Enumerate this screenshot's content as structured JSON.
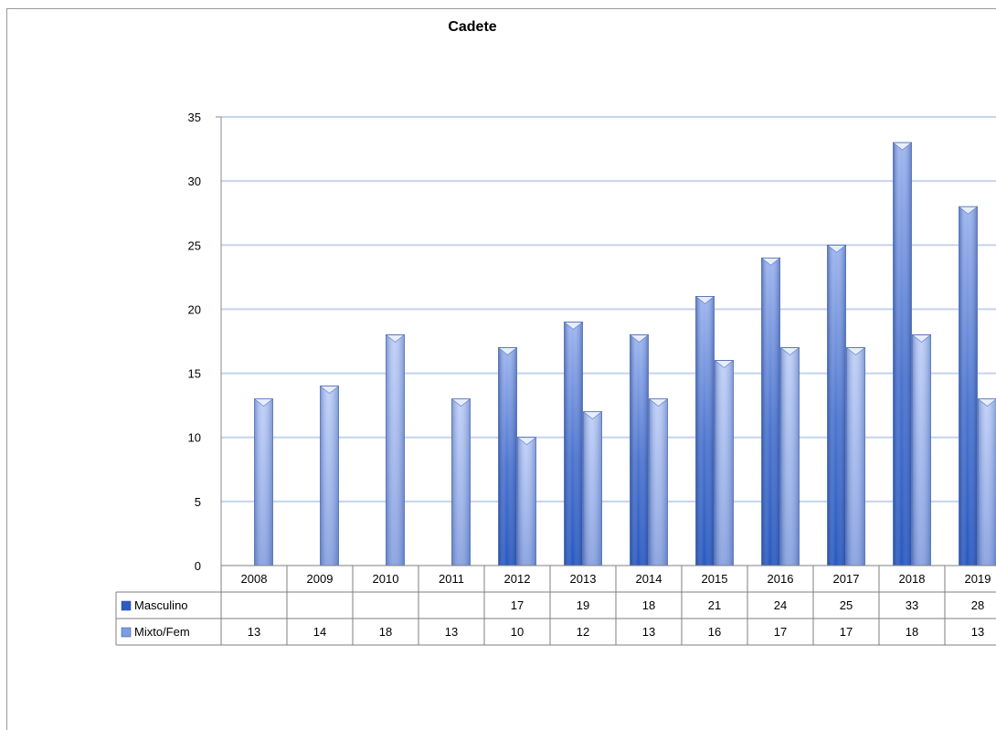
{
  "chart_data": {
    "type": "bar",
    "title": "Cadete",
    "categories": [
      "2008",
      "2009",
      "2010",
      "2011",
      "2012",
      "2013",
      "2014",
      "2015",
      "2016",
      "2017",
      "2018",
      "2019"
    ],
    "series": [
      {
        "name": "Masculino",
        "values": [
          null,
          null,
          null,
          null,
          17,
          19,
          18,
          21,
          24,
          25,
          33,
          28
        ],
        "color": "#3a66c4"
      },
      {
        "name": "Mixto/Fem",
        "values": [
          13,
          14,
          18,
          13,
          10,
          12,
          13,
          16,
          17,
          17,
          18,
          13
        ],
        "color": "#7c9ee4"
      }
    ],
    "ylim": [
      0,
      35
    ],
    "yticks": [
      0,
      5,
      10,
      15,
      20,
      25,
      30,
      35
    ],
    "grid": true,
    "legend": "data-table"
  },
  "colors": {
    "grid": "#c5d3ec",
    "table_border": "#7f7f7f"
  }
}
